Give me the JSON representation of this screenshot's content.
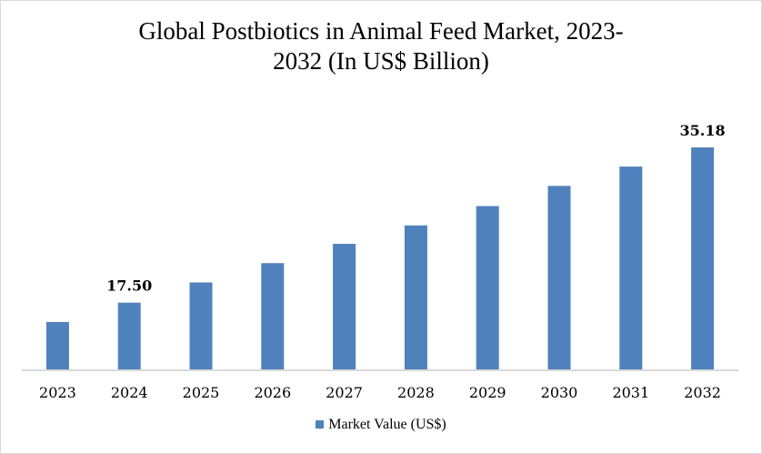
{
  "chart_data": {
    "type": "bar",
    "title": "Global Postbiotics in Animal Feed Market, 2023-2032 (In US$ Billion)",
    "title_lines": [
      "Global Postbiotics in Animal Feed Market, 2023-",
      "2032 (In US$ Billion)"
    ],
    "categories": [
      "2023",
      "2024",
      "2025",
      "2026",
      "2027",
      "2028",
      "2029",
      "2030",
      "2031",
      "2032"
    ],
    "series": [
      {
        "name": "Market Value (US$)",
        "color": "#4f81bd",
        "values": [
          15.3,
          17.5,
          19.8,
          22.0,
          24.2,
          26.3,
          28.5,
          30.8,
          33.0,
          35.18
        ]
      }
    ],
    "data_labels": [
      {
        "category": "2024",
        "text": "17.50"
      },
      {
        "category": "2032",
        "text": "35.18"
      }
    ],
    "xlabel": "",
    "ylabel": "",
    "y_axis_visible": false,
    "grid": false,
    "legend": "bottom"
  }
}
